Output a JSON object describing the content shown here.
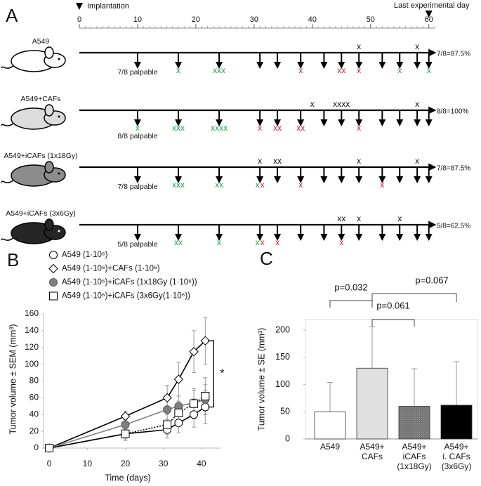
{
  "panel_a": {
    "label": "A",
    "start_label": "Implantation",
    "end_label": "Last experimental day",
    "xlim": [
      0,
      61
    ],
    "xticks": [
      0,
      10,
      20,
      30,
      40,
      50,
      60
    ],
    "end_day": 60,
    "measurement_days": [
      10,
      17,
      24,
      31,
      34,
      38,
      42,
      45,
      48,
      52,
      55,
      58,
      60
    ],
    "rows": [
      {
        "name": "A549",
        "fill": "#ffffff",
        "palpable": "7/8 palpable",
        "result": "7/8=87.5%",
        "above": [
          {
            "day": 48,
            "text": "x"
          },
          {
            "day": 58,
            "text": "x"
          }
        ],
        "below": [
          {
            "day": 17,
            "text": "x",
            "color": "#1aa84a"
          },
          {
            "day": 24,
            "text": "xxx",
            "color": "#1aa84a"
          },
          {
            "day": 38,
            "text": "x",
            "color": "#d0202a"
          },
          {
            "day": 45,
            "text": "xx",
            "color": "#d0202a"
          },
          {
            "day": 48,
            "text": "x",
            "color": "#d0202a"
          },
          {
            "day": 55,
            "text": "x",
            "color": "#1aa84a"
          },
          {
            "day": 60,
            "text": "x",
            "color": "#1aa84a"
          }
        ]
      },
      {
        "name": "A549+CAFs",
        "fill": "#dcdcdc",
        "palpable": "8/8 palpable",
        "result": "8/8=100%",
        "above": [
          {
            "day": 40,
            "text": "x"
          },
          {
            "day": 45,
            "text": "xxxx"
          },
          {
            "day": 58,
            "text": "x"
          }
        ],
        "below": [
          {
            "day": 10,
            "text": "x",
            "color": "#1aa84a"
          },
          {
            "day": 17,
            "text": "xxx",
            "color": "#1aa84a"
          },
          {
            "day": 24,
            "text": "xxxx",
            "color": "#1aa84a"
          },
          {
            "day": 31,
            "text": "x",
            "color": "#d0202a"
          },
          {
            "day": 34,
            "text": "xx",
            "color": "#d0202a"
          },
          {
            "day": 38,
            "text": "xx",
            "color": "#d0202a"
          },
          {
            "day": 48,
            "text": "x",
            "color": "#d0202a"
          }
        ]
      },
      {
        "name": "A549+iCAFs (1x18Gy)",
        "fill": "#8c8c8c",
        "palpable": "7/8 palpable",
        "result": "7/8=87.5%",
        "above": [
          {
            "day": 31,
            "text": "x"
          },
          {
            "day": 34,
            "text": "xx"
          },
          {
            "day": 48,
            "text": "x"
          },
          {
            "day": 58,
            "text": "x"
          }
        ],
        "below": [
          {
            "day": 17,
            "text": "xxx",
            "color": "#1aa84a"
          },
          {
            "day": 24,
            "text": "xx",
            "color": "#1aa84a"
          },
          {
            "day": 31,
            "text": "x",
            "color": "#1aa84a"
          },
          {
            "day": 31,
            "text": "x",
            "color": "#d0202a"
          },
          {
            "day": 38,
            "text": "x",
            "color": "#d0202a"
          },
          {
            "day": 52,
            "text": "x",
            "color": "#d0202a"
          }
        ]
      },
      {
        "name": "A549+iCAFs (3x6Gy)",
        "fill": "#262626",
        "palpable": "5/8 palpable",
        "result": "5/8=62.5%",
        "above": [
          {
            "day": 45,
            "text": "xx"
          },
          {
            "day": 48,
            "text": "x"
          },
          {
            "day": 55,
            "text": "x"
          }
        ],
        "below": [
          {
            "day": 17,
            "text": "xx",
            "color": "#1aa84a"
          },
          {
            "day": 24,
            "text": "x",
            "color": "#1aa84a"
          },
          {
            "day": 31,
            "text": "x",
            "color": "#1aa84a"
          },
          {
            "day": 31,
            "text": "x",
            "color": "#d0202a"
          },
          {
            "day": 34,
            "text": "x",
            "color": "#d0202a"
          },
          {
            "day": 45,
            "text": "x",
            "color": "#d0202a"
          }
        ]
      }
    ]
  },
  "chart_data": [
    {
      "type": "line",
      "label": "B",
      "x_label": "Time (days)",
      "y_label": "Tumor volume ± SEM (mm³)",
      "x": [
        0,
        20,
        31,
        34,
        38,
        41
      ],
      "xlim": [
        -1.5,
        45
      ],
      "xticks": [
        0,
        10,
        20,
        30,
        40
      ],
      "ylim": [
        0,
        160
      ],
      "yticks": [
        0,
        20,
        40,
        60,
        80,
        100,
        120,
        140,
        160
      ],
      "annotation": "*",
      "series": [
        {
          "name": "A549 (1·10⁶)",
          "color": "#000000",
          "marker": "circle",
          "marker_fill": "#ffffff",
          "dash": false,
          "values": [
            0,
            17,
            22,
            30,
            40,
            49
          ],
          "errors": [
            0,
            8,
            10,
            12,
            15,
            20
          ]
        },
        {
          "name": "A549 (1·10⁶)+CAFs (1·10⁶)",
          "color": "#000000",
          "marker": "diamond",
          "marker_fill": "#ffffff",
          "dash": false,
          "values": [
            0,
            38,
            60,
            82,
            115,
            128
          ],
          "errors": [
            0,
            6,
            15,
            20,
            25,
            28
          ]
        },
        {
          "name": "A549 (1·10⁶)+iCAFs (1x18Gy (1·10⁶))",
          "color": "#808080",
          "marker": "circle",
          "marker_fill": "#808080",
          "dash": false,
          "values": [
            0,
            28,
            46,
            50,
            54,
            58
          ],
          "errors": [
            0,
            6,
            12,
            12,
            15,
            18
          ]
        },
        {
          "name": "A549 (1·10⁶)+iCAFs (3x6Gy(1·10⁶))",
          "color": "#000000",
          "marker": "square",
          "marker_fill": "#ffffff",
          "dash": true,
          "values": [
            0,
            17,
            28,
            42,
            53,
            62
          ],
          "errors": [
            0,
            6,
            12,
            14,
            18,
            22
          ]
        }
      ]
    },
    {
      "type": "bar",
      "label": "C",
      "y_label": "Tumor volume ± SE (mm³)",
      "categories": [
        [
          "A549"
        ],
        [
          "A549+",
          "CAFs"
        ],
        [
          "A549+",
          "iCAFs",
          "(1x18Gy)"
        ],
        [
          "A549+",
          "i. CAFs",
          "(3x6Gy)"
        ]
      ],
      "values": [
        50,
        130,
        60,
        62
      ],
      "errors": [
        54,
        76,
        69,
        80
      ],
      "colors": [
        "#ffffff",
        "#e0e0e0",
        "#7a7a7a",
        "#000000"
      ],
      "ylim": [
        0,
        220
      ],
      "yticks": [
        0,
        50,
        100,
        150,
        200
      ],
      "grid": false,
      "annotations": [
        "p=0.032",
        "p=0.061",
        "p=0.067"
      ]
    }
  ]
}
